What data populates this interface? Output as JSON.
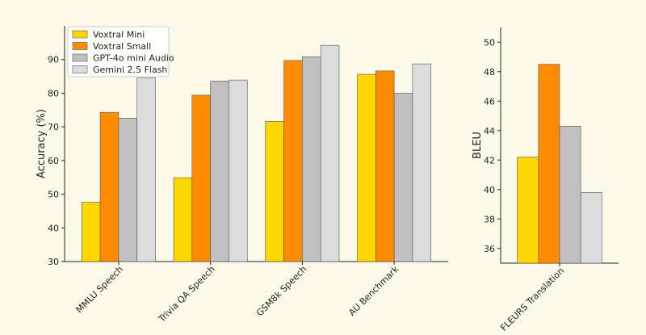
{
  "colors": {
    "background": "#fcf9e9",
    "axis": "#222222",
    "bar_edge": "#555555"
  },
  "chart_data": [
    {
      "type": "bar",
      "title": "",
      "xlabel": "",
      "ylabel": "Accuracy (%)",
      "ylim": [
        30,
        100
      ],
      "yticks": [
        30,
        40,
        50,
        60,
        70,
        80,
        90
      ],
      "grid": false,
      "legend_placement": "top-left",
      "categories": [
        "MMLU Speech",
        "Trivia QA Speech",
        "GSM8k Speech",
        "AU Benchmark"
      ],
      "series": [
        {
          "name": "Voxtral Mini",
          "color": "#ffd700",
          "values": [
            47.6,
            54.9,
            71.6,
            85.6
          ]
        },
        {
          "name": "Voxtral Small",
          "color": "#ff8c00",
          "values": [
            74.3,
            79.4,
            89.7,
            86.6
          ]
        },
        {
          "name": "GPT-4o mini Audio",
          "color": "#c0c0c0",
          "values": [
            72.6,
            83.6,
            90.8,
            80.0
          ]
        },
        {
          "name": "Gemini 2.5 Flash",
          "color": "#dcdcdc",
          "values": [
            84.5,
            83.9,
            94.2,
            88.7
          ]
        }
      ]
    },
    {
      "type": "bar",
      "title": "",
      "xlabel": "",
      "ylabel": "BLEU",
      "ylim": [
        35,
        51
      ],
      "yticks": [
        36,
        38,
        40,
        42,
        44,
        46,
        48,
        50
      ],
      "grid": false,
      "categories": [
        "FLEURS Translation"
      ],
      "series": [
        {
          "name": "Voxtral Mini",
          "color": "#ffd700",
          "values": [
            42.2
          ]
        },
        {
          "name": "Voxtral Small",
          "color": "#ff8c00",
          "values": [
            48.5
          ]
        },
        {
          "name": "GPT-4o mini Audio",
          "color": "#c0c0c0",
          "values": [
            44.3
          ]
        },
        {
          "name": "Gemini 2.5 Flash",
          "color": "#dcdcdc",
          "values": [
            39.8
          ]
        }
      ]
    }
  ]
}
